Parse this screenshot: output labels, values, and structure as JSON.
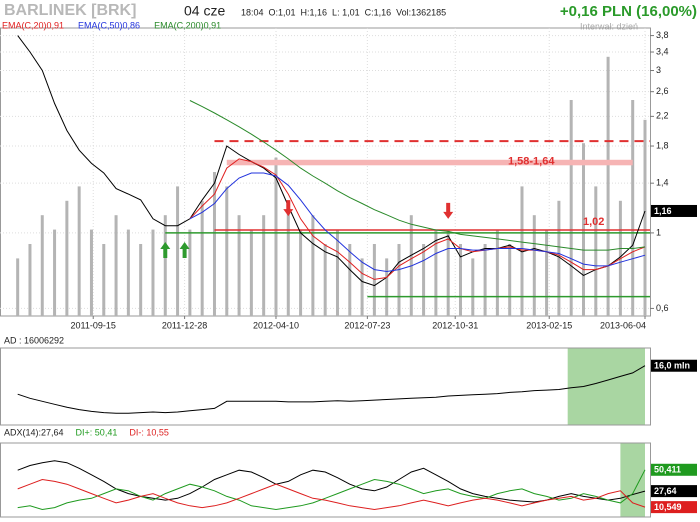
{
  "header": {
    "title": "BARLINEK [BRK]",
    "date": "04 cze",
    "quote": "18:04  O:1,01  H:1,16  L: 1,01  C:1,16  Vol:1362185",
    "change": "+0,16 PLN (16,00%)",
    "interval": "Interwał: dzień"
  },
  "chart_data": [
    {
      "type": "line",
      "color": "#000000",
      "x": [
        "2011-06-21",
        "2011-07-05",
        "2011-07-19",
        "2011-08-02",
        "2011-08-16",
        "2011-08-30",
        "2011-09-13",
        "2011-09-27",
        "2011-10-11",
        "2011-10-25",
        "2011-11-08",
        "2011-11-22",
        "2011-12-06",
        "2011-12-20",
        "2012-01-03",
        "2012-01-17",
        "2012-01-31",
        "2012-02-14",
        "2012-02-28",
        "2012-03-13",
        "2012-03-27",
        "2012-04-10",
        "2012-04-24",
        "2012-05-08",
        "2012-05-22",
        "2012-06-05",
        "2012-06-19",
        "2012-07-03",
        "2012-07-17",
        "2012-07-31",
        "2012-08-14",
        "2012-08-28",
        "2012-09-11",
        "2012-09-25",
        "2012-10-09",
        "2012-10-23",
        "2012-11-06",
        "2012-11-20",
        "2012-12-04",
        "2012-12-18",
        "2013-01-01",
        "2013-01-15",
        "2013-01-29",
        "2013-02-12",
        "2013-02-26",
        "2013-03-12",
        "2013-03-26",
        "2013-04-09",
        "2013-04-23",
        "2013-05-07",
        "2013-05-21",
        "2013-06-04"
      ],
      "values": [
        3.8,
        3.4,
        3.0,
        2.4,
        2.0,
        1.75,
        1.6,
        1.5,
        1.35,
        1.3,
        1.25,
        1.1,
        1.05,
        1.05,
        1.1,
        1.25,
        1.4,
        1.8,
        1.7,
        1.62,
        1.55,
        1.45,
        1.2,
        1.0,
        0.93,
        0.88,
        0.85,
        0.78,
        0.72,
        0.7,
        0.74,
        0.82,
        0.86,
        0.9,
        0.95,
        0.98,
        0.85,
        0.88,
        0.9,
        0.9,
        0.92,
        0.88,
        0.9,
        0.88,
        0.85,
        0.8,
        0.75,
        0.78,
        0.8,
        0.85,
        0.92,
        1.16
      ],
      "value_labels": [
        null,
        null,
        null,
        null,
        null,
        null,
        null,
        null,
        null,
        null,
        null,
        null,
        null,
        null,
        null,
        null,
        null,
        null,
        null,
        null,
        null,
        null,
        null,
        null,
        null,
        null,
        null,
        null,
        null,
        null,
        null,
        null,
        null,
        null,
        null,
        null,
        null,
        null,
        null,
        null,
        null,
        null,
        null,
        null,
        null,
        null,
        null,
        null,
        null,
        null,
        null,
        "1,16"
      ],
      "series": [
        {
          "name": "EMA(C,20)0,91",
          "color": "#e02020",
          "values": [
            null,
            null,
            null,
            null,
            null,
            null,
            null,
            null,
            null,
            null,
            null,
            null,
            null,
            null,
            1.1,
            1.2,
            1.3,
            1.55,
            1.65,
            1.62,
            1.56,
            1.48,
            1.3,
            1.1,
            0.98,
            0.92,
            0.88,
            0.82,
            0.76,
            0.73,
            0.74,
            0.8,
            0.84,
            0.88,
            0.93,
            0.96,
            0.9,
            0.88,
            0.89,
            0.9,
            0.91,
            0.89,
            0.89,
            0.88,
            0.86,
            0.82,
            0.78,
            0.78,
            0.8,
            0.84,
            0.88,
            0.91
          ]
        },
        {
          "name": "EMA(C,50)0,86",
          "color": "#2233dd",
          "values": [
            null,
            null,
            null,
            null,
            null,
            null,
            null,
            null,
            null,
            null,
            null,
            null,
            null,
            null,
            1.1,
            1.15,
            1.22,
            1.35,
            1.45,
            1.5,
            1.5,
            1.47,
            1.38,
            1.25,
            1.12,
            1.02,
            0.95,
            0.88,
            0.82,
            0.78,
            0.77,
            0.78,
            0.8,
            0.83,
            0.87,
            0.9,
            0.9,
            0.89,
            0.89,
            0.9,
            0.9,
            0.9,
            0.89,
            0.88,
            0.87,
            0.84,
            0.81,
            0.8,
            0.8,
            0.82,
            0.84,
            0.86
          ]
        },
        {
          "name": "EMA(C,200)0,91",
          "color": "#2a8a2a",
          "values": [
            null,
            null,
            null,
            null,
            null,
            null,
            null,
            null,
            null,
            null,
            null,
            null,
            null,
            null,
            2.45,
            2.35,
            2.25,
            2.15,
            2.05,
            1.95,
            1.85,
            1.75,
            1.65,
            1.55,
            1.47,
            1.4,
            1.33,
            1.27,
            1.22,
            1.17,
            1.13,
            1.09,
            1.06,
            1.04,
            1.02,
            1.01,
            0.99,
            0.98,
            0.97,
            0.96,
            0.95,
            0.94,
            0.93,
            0.92,
            0.91,
            0.9,
            0.89,
            0.89,
            0.89,
            0.9,
            0.9,
            0.91
          ]
        }
      ],
      "volume": [
        400000,
        500000,
        700000,
        600000,
        800000,
        900000,
        600000,
        500000,
        700000,
        600000,
        500000,
        600000,
        700000,
        900000,
        600000,
        800000,
        1000000,
        900000,
        700000,
        600000,
        700000,
        1100000,
        800000,
        600000,
        700000,
        500000,
        600000,
        500000,
        400000,
        500000,
        400000,
        500000,
        700000,
        500000,
        600000,
        600000,
        500000,
        400000,
        500000,
        600000,
        500000,
        900000,
        700000,
        600000,
        800000,
        1500000,
        1200000,
        900000,
        1800000,
        800000,
        1500000,
        1362185
      ],
      "volume_color": "#b4b4b4",
      "vlim": [
        0,
        2000000
      ],
      "log": true,
      "ylim": [
        0.57,
        4.0
      ],
      "yticks": [
        {
          "value": 3.8,
          "label": "3,8"
        },
        {
          "value": 3.4,
          "label": "3,4"
        },
        3,
        {
          "value": 2.6,
          "label": "2,6"
        },
        {
          "value": 2.2,
          "label": "2,2"
        },
        {
          "value": 1.8,
          "label": "1,8"
        },
        {
          "value": 1.4,
          "label": "1,4"
        },
        1,
        {
          "value": 0.6,
          "label": "0,6"
        }
      ],
      "xlim": [
        "2011-06-10",
        "2013-06-04"
      ],
      "xticks": [
        "2011-09-15",
        "2011-12-28",
        "2012-04-10",
        "2012-07-23",
        "2012-10-31",
        "2013-02-15",
        "2013-06-04"
      ],
      "grid": true,
      "bands": [
        {
          "low": 1.58,
          "high": 1.64,
          "label": "1,58-1,64",
          "color": "#f6b4b4",
          "from": "2012-02-14",
          "to": "2013-05-21"
        }
      ],
      "levels": [
        {
          "value": 1.86,
          "color": "#e03030",
          "dash": true,
          "from": "2012-01-31"
        },
        {
          "value": 1.02,
          "label": "1,02",
          "color": "#e03030",
          "from": "2012-01-31"
        },
        {
          "value": 1,
          "color": "#2e9a2e",
          "from": "2011-12-06"
        },
        {
          "value": 0.65,
          "color": "#2e9a2e",
          "from": "2012-07-23"
        }
      ],
      "arrows": [
        {
          "x": "2011-12-06",
          "value": 0.94,
          "direction": "up",
          "color": "#2e9a2e"
        },
        {
          "x": "2011-12-28",
          "value": 0.94,
          "direction": "up",
          "color": "#2e9a2e"
        },
        {
          "x": "2012-04-24",
          "value": 1.12,
          "direction": "down",
          "color": "#e03030"
        },
        {
          "x": "2012-10-23",
          "value": 1.1,
          "direction": "down",
          "color": "#e03030"
        }
      ]
    },
    {
      "type": "line",
      "title": "AD : 16006292",
      "color": "#000000",
      "ylim": [
        6000000,
        19000000
      ],
      "values": [
        11200000,
        10500000,
        10000000,
        9500000,
        9000000,
        8600000,
        8300000,
        8100000,
        8000000,
        8000000,
        8100000,
        8200000,
        8100000,
        8200000,
        8400000,
        8600000,
        8800000,
        10000000,
        10000000,
        10000000,
        10000000,
        10000000,
        9900000,
        9900000,
        9900000,
        10000000,
        10100000,
        10000000,
        10100000,
        10200000,
        10300000,
        10400000,
        10500000,
        10600000,
        10700000,
        10900000,
        11000000,
        11100000,
        11200000,
        11300000,
        11500000,
        11600000,
        11800000,
        11900000,
        12000000,
        12300000,
        12500000,
        13000000,
        13600000,
        14200000,
        14800000,
        16006292
      ],
      "value_labels": [
        null,
        null,
        null,
        null,
        null,
        null,
        null,
        null,
        null,
        null,
        null,
        null,
        null,
        null,
        null,
        null,
        null,
        null,
        null,
        null,
        null,
        null,
        null,
        null,
        null,
        null,
        null,
        null,
        null,
        null,
        null,
        null,
        null,
        null,
        null,
        null,
        null,
        null,
        null,
        null,
        null,
        null,
        null,
        null,
        null,
        null,
        null,
        null,
        null,
        null,
        null,
        "16,0 mln"
      ],
      "highlight": {
        "from": "2013-03-08",
        "to": "2013-06-04",
        "color": "#a9d6a2"
      }
    },
    {
      "type": "line",
      "ylim": [
        0,
        79
      ],
      "highlight": {
        "from": "2013-05-07",
        "to": "2013-06-04",
        "color": "#a9d6a2"
      },
      "series": [
        {
          "name": "ADX(14):27,64",
          "color": "#000000",
          "values": [
            50,
            55,
            58,
            60,
            58,
            52,
            45,
            38,
            30,
            25,
            22,
            20,
            18,
            20,
            25,
            32,
            40,
            45,
            50,
            48,
            42,
            35,
            38,
            45,
            50,
            48,
            42,
            35,
            30,
            28,
            32,
            40,
            48,
            52,
            45,
            38,
            30,
            25,
            22,
            20,
            18,
            17,
            16,
            18,
            22,
            25,
            22,
            20,
            18,
            20,
            24,
            27.64
          ],
          "value_labels": [
            null,
            null,
            null,
            null,
            null,
            null,
            null,
            null,
            null,
            null,
            null,
            null,
            null,
            null,
            null,
            null,
            null,
            null,
            null,
            null,
            null,
            null,
            null,
            null,
            null,
            null,
            null,
            null,
            null,
            null,
            null,
            null,
            null,
            null,
            null,
            null,
            null,
            null,
            null,
            null,
            null,
            null,
            null,
            null,
            null,
            null,
            null,
            null,
            null,
            null,
            null,
            "27,64"
          ]
        },
        {
          "name": "DI+: 50,41",
          "color": "#1f9a1f",
          "values": [
            10,
            12,
            8,
            10,
            15,
            18,
            20,
            25,
            30,
            28,
            22,
            18,
            25,
            30,
            35,
            32,
            28,
            22,
            18,
            12,
            10,
            8,
            10,
            12,
            15,
            20,
            25,
            30,
            35,
            40,
            38,
            35,
            30,
            25,
            28,
            30,
            25,
            22,
            20,
            25,
            28,
            30,
            25,
            22,
            18,
            20,
            25,
            22,
            18,
            15,
            25,
            50.411
          ],
          "value_labels": [
            null,
            null,
            null,
            null,
            null,
            null,
            null,
            null,
            null,
            null,
            null,
            null,
            null,
            null,
            null,
            null,
            null,
            null,
            null,
            null,
            null,
            null,
            null,
            null,
            null,
            null,
            null,
            null,
            null,
            null,
            null,
            null,
            null,
            null,
            null,
            null,
            null,
            null,
            null,
            null,
            null,
            null,
            null,
            null,
            null,
            null,
            null,
            null,
            null,
            null,
            null,
            "50,411"
          ]
        },
        {
          "name": "DI-: 10,55",
          "color": "#dd1f1f",
          "values": [
            30,
            35,
            40,
            38,
            35,
            30,
            25,
            20,
            15,
            18,
            22,
            25,
            20,
            15,
            12,
            10,
            12,
            15,
            20,
            25,
            30,
            35,
            30,
            25,
            20,
            18,
            15,
            12,
            10,
            8,
            10,
            12,
            15,
            18,
            15,
            12,
            15,
            18,
            20,
            18,
            15,
            12,
            15,
            18,
            20,
            22,
            18,
            20,
            25,
            28,
            15,
            10.549
          ],
          "value_labels": [
            null,
            null,
            null,
            null,
            null,
            null,
            null,
            null,
            null,
            null,
            null,
            null,
            null,
            null,
            null,
            null,
            null,
            null,
            null,
            null,
            null,
            null,
            null,
            null,
            null,
            null,
            null,
            null,
            null,
            null,
            null,
            null,
            null,
            null,
            null,
            null,
            null,
            null,
            null,
            null,
            null,
            null,
            null,
            null,
            null,
            null,
            null,
            null,
            null,
            null,
            null,
            "10,549"
          ]
        }
      ]
    }
  ]
}
